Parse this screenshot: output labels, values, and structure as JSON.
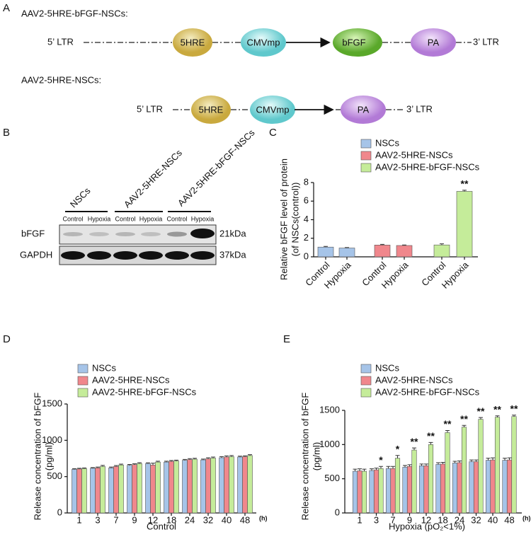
{
  "panel_labels": [
    "A",
    "B",
    "C",
    "D",
    "E"
  ],
  "diagram": {
    "constructs": [
      {
        "title": "AAV2-5HRE-bFGF-NSCs:",
        "elements": [
          "5’ LTR",
          "5HRE",
          "CMVmp",
          "bFGF",
          "PA",
          "3’ LTR"
        ]
      },
      {
        "title": "AAV2-5HRE-NSCs:",
        "elements": [
          "5’ LTR",
          "5HRE",
          "CMVmp",
          "PA",
          "3’ LTR"
        ]
      }
    ]
  },
  "blot": {
    "groups": [
      "NSCs",
      "AAV2-5HRE-NSCs",
      "AAV2-5HRE-bFGF-NSCs"
    ],
    "lanes": [
      "Control",
      "Hypoxia",
      "Control",
      "Hypoxia",
      "Control",
      "Hypoxia"
    ],
    "rows": [
      {
        "label": "bFGF",
        "size": "21kDa"
      },
      {
        "label": "GAPDH",
        "size": "37kDa"
      }
    ]
  },
  "chart_data": [
    {
      "type": "bar",
      "ylabel": [
        "Relative bFGF level of protein",
        "(of NSCs(control))"
      ],
      "categories": [
        "Control",
        "Hypoxia",
        "Control",
        "Hypoxia",
        "Control",
        "Hypoxia"
      ],
      "series": [
        {
          "name": "NSCs",
          "color": "#a6c4e8",
          "values": [
            1.05,
            0.95,
            null,
            null,
            null,
            null
          ],
          "errors": [
            0.07,
            0.05,
            null,
            null,
            null,
            null
          ]
        },
        {
          "name": "AAV2-5HRE-NSCs",
          "color": "#f0878c",
          "values": [
            null,
            null,
            1.27,
            1.22,
            null,
            null
          ],
          "errors": [
            null,
            null,
            0.07,
            0.06,
            null,
            null
          ]
        },
        {
          "name": "AAV2-5HRE-bFGF-NSCs",
          "color": "#c5ec9a",
          "values": [
            null,
            null,
            null,
            null,
            1.28,
            7.05
          ],
          "errors": [
            null,
            null,
            null,
            null,
            0.12,
            0.12
          ],
          "annotations": [
            null,
            null,
            null,
            null,
            null,
            "**"
          ]
        }
      ],
      "ylim": [
        0,
        8
      ],
      "yticks": [
        0,
        2,
        4,
        6,
        8
      ]
    },
    {
      "type": "bar",
      "ylabel": [
        "Release concentration of bFGF",
        "(pg/ml)"
      ],
      "xlabel": "Control",
      "xunit": "(h)",
      "categories": [
        "1",
        "3",
        "7",
        "9",
        "12",
        "18",
        "24",
        "32",
        "40",
        "48"
      ],
      "series": [
        {
          "name": "NSCs",
          "color": "#a6c4e8",
          "values": [
            600,
            615,
            620,
            655,
            680,
            700,
            725,
            730,
            760,
            770
          ],
          "errors": [
            10,
            10,
            12,
            12,
            10,
            12,
            12,
            12,
            15,
            12
          ]
        },
        {
          "name": "AAV2-5HRE-NSCs",
          "color": "#f0878c",
          "values": [
            605,
            620,
            640,
            665,
            660,
            710,
            735,
            745,
            770,
            775
          ],
          "errors": [
            10,
            12,
            12,
            12,
            25,
            12,
            12,
            15,
            15,
            12
          ]
        },
        {
          "name": "AAV2-5HRE-bFGF-NSCs",
          "color": "#c5ec9a",
          "values": [
            610,
            640,
            660,
            680,
            700,
            715,
            740,
            755,
            775,
            790
          ],
          "errors": [
            10,
            15,
            12,
            12,
            12,
            12,
            12,
            15,
            15,
            12
          ]
        }
      ],
      "ylim": [
        0,
        1500
      ],
      "yticks": [
        0,
        500,
        1000,
        1500
      ]
    },
    {
      "type": "bar",
      "ylabel": [
        "Release concentration of bFGF",
        "(pg/ml)"
      ],
      "xlabel": "Hypoxia (pO₂<1%)",
      "xunit": "(h)",
      "categories": [
        "1",
        "3",
        "7",
        "9",
        "12",
        "18",
        "24",
        "32",
        "40",
        "48"
      ],
      "series": [
        {
          "name": "NSCs",
          "color": "#a6c4e8",
          "values": [
            610,
            620,
            650,
            670,
            690,
            710,
            730,
            750,
            770,
            770
          ],
          "errors": [
            30,
            25,
            30,
            25,
            25,
            25,
            25,
            25,
            30,
            30
          ]
        },
        {
          "name": "AAV2-5HRE-NSCs",
          "color": "#f0878c",
          "values": [
            615,
            630,
            650,
            680,
            690,
            715,
            735,
            750,
            775,
            775
          ],
          "errors": [
            30,
            25,
            30,
            25,
            25,
            25,
            25,
            25,
            30,
            30
          ]
        },
        {
          "name": "AAV2-5HRE-bFGF-NSCs",
          "color": "#c5ec9a",
          "values": [
            610,
            650,
            800,
            920,
            1000,
            1175,
            1255,
            1370,
            1400,
            1410
          ],
          "errors": [
            30,
            30,
            40,
            30,
            30,
            30,
            25,
            25,
            20,
            20
          ],
          "annotations": [
            null,
            "*",
            "*",
            "**",
            "**",
            "**",
            "**",
            "**",
            "**",
            "**"
          ]
        }
      ],
      "ylim": [
        0,
        1500
      ],
      "yticks": [
        0,
        500,
        1000,
        1500
      ]
    }
  ]
}
